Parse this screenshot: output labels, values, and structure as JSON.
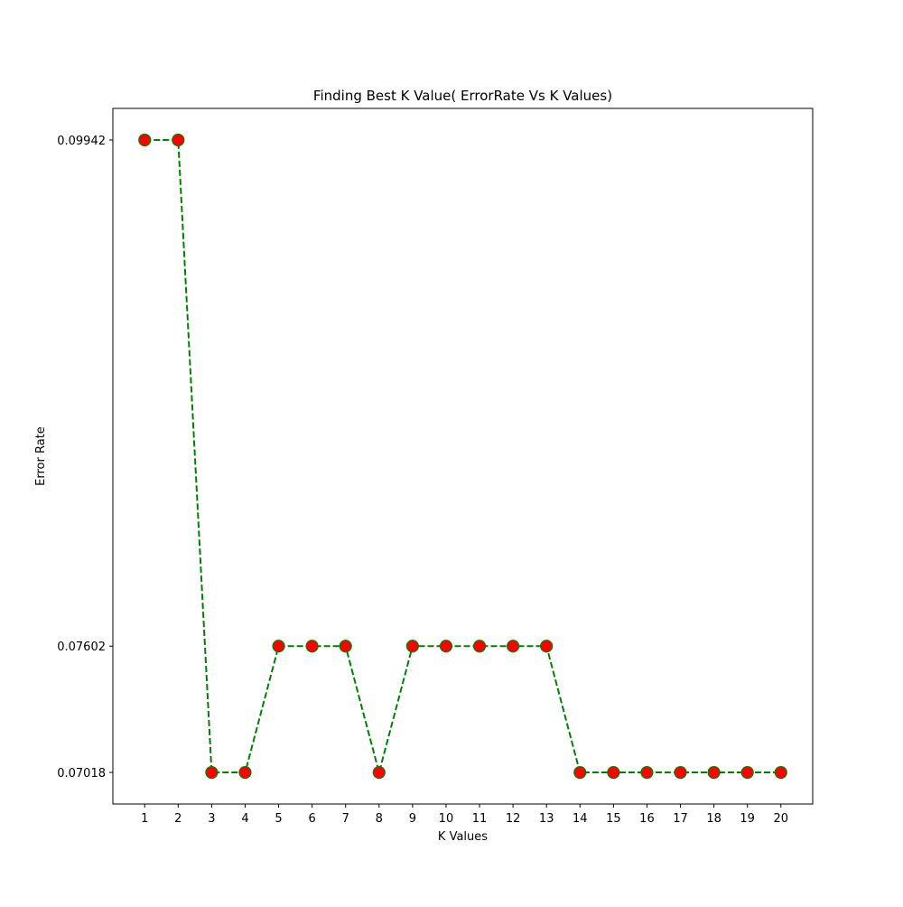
{
  "chart_data": {
    "type": "line",
    "title": "Finding Best K Value( ErrorRate Vs K Values)",
    "xlabel": "K Values",
    "ylabel": "Error Rate",
    "x": [
      1,
      2,
      3,
      4,
      5,
      6,
      7,
      8,
      9,
      10,
      11,
      12,
      13,
      14,
      15,
      16,
      17,
      18,
      19,
      20
    ],
    "xticks": [
      "1",
      "2",
      "3",
      "4",
      "5",
      "6",
      "7",
      "8",
      "9",
      "10",
      "11",
      "12",
      "13",
      "14",
      "15",
      "16",
      "17",
      "18",
      "19",
      "20"
    ],
    "yticks": [
      {
        "value": 0.09942,
        "label": "0.09942"
      },
      {
        "value": 0.07602,
        "label": "0.07602"
      },
      {
        "value": 0.07018,
        "label": "0.07018"
      }
    ],
    "series": [
      {
        "values": [
          0.09942,
          0.09942,
          0.07018,
          0.07018,
          0.07602,
          0.07602,
          0.07602,
          0.07018,
          0.07602,
          0.07602,
          0.07602,
          0.07602,
          0.07602,
          0.07018,
          0.07018,
          0.07018,
          0.07018,
          0.07018,
          0.07018,
          0.07018
        ],
        "line_color": "#008000",
        "line_style": "dashed",
        "marker": "circle",
        "marker_face_color": "#ff0000",
        "marker_edge_color": "#008000"
      }
    ],
    "xlim": [
      0.05,
      20.95
    ],
    "ylim": [
      0.06872,
      0.10088
    ],
    "grid": false,
    "legend": "none"
  }
}
